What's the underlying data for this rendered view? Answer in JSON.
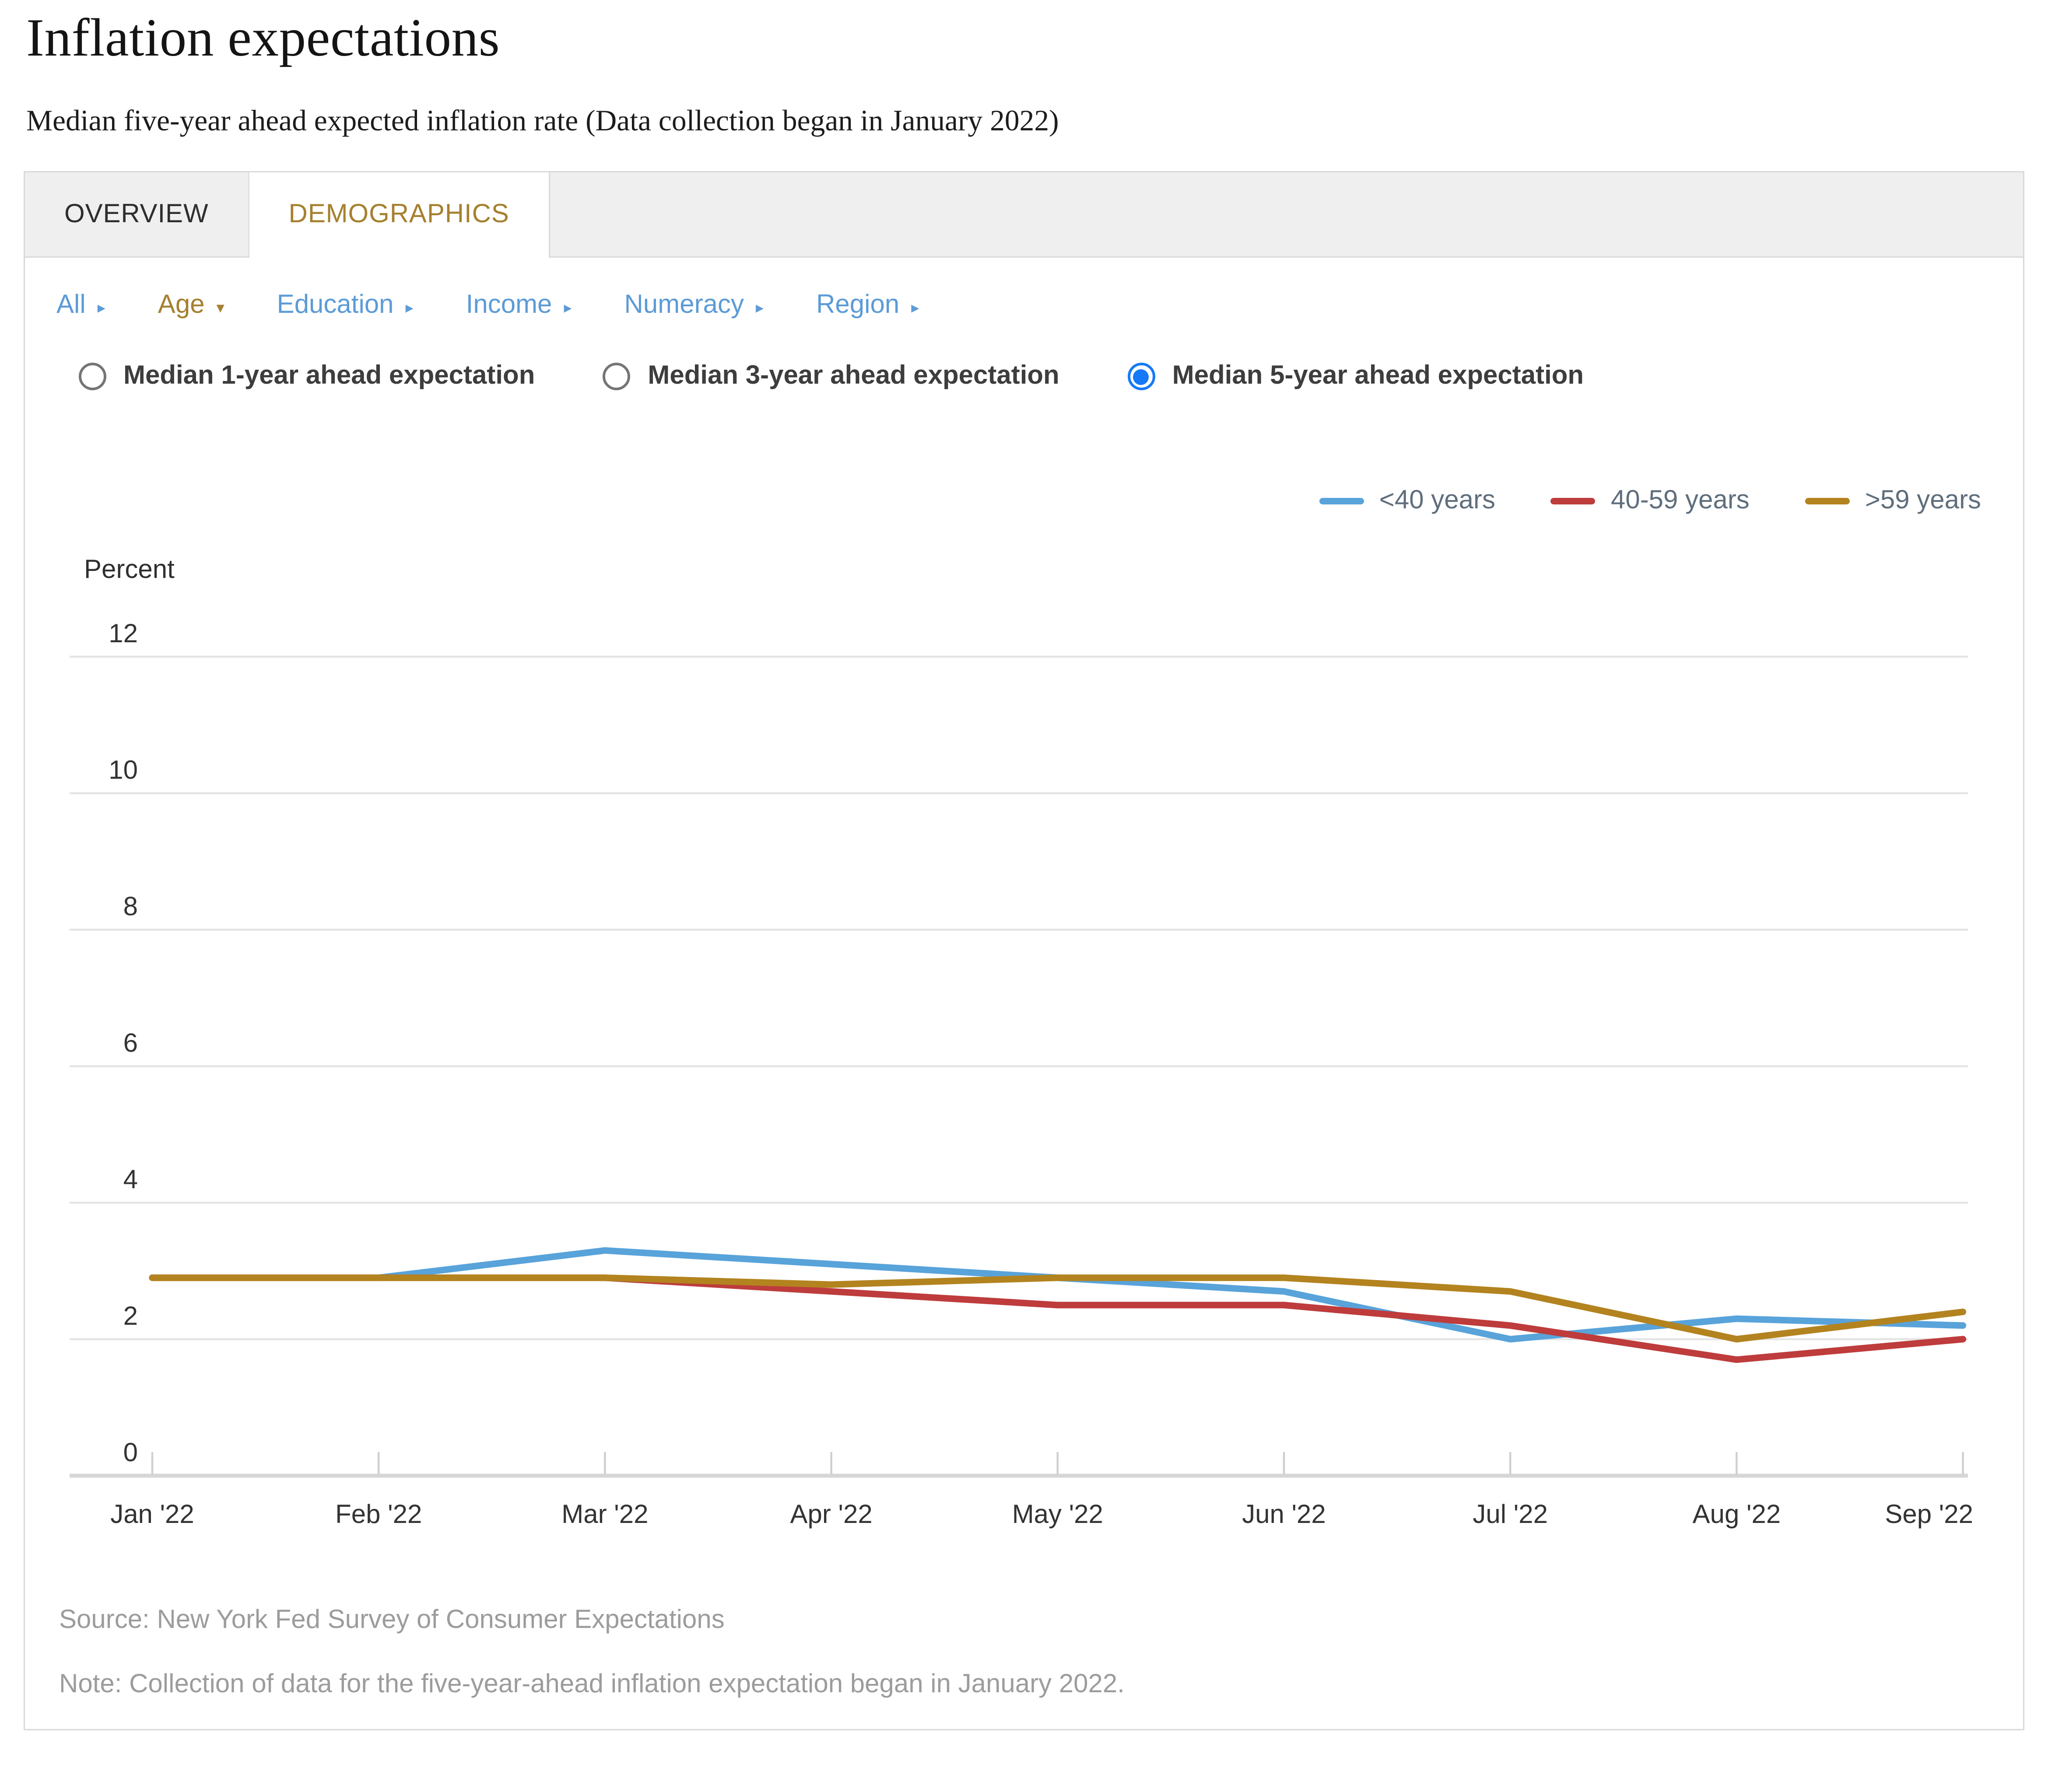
{
  "page": {
    "title": "Inflation expectations",
    "subtitle": "Median five-year ahead expected inflation rate (Data collection began in January 2022)"
  },
  "tabs": [
    {
      "label": "OVERVIEW",
      "active": false
    },
    {
      "label": "DEMOGRAPHICS",
      "active": true
    }
  ],
  "filters": [
    {
      "label": "All",
      "active": false,
      "arrow": "right"
    },
    {
      "label": "Age",
      "active": true,
      "arrow": "down"
    },
    {
      "label": "Education",
      "active": false,
      "arrow": "right"
    },
    {
      "label": "Income",
      "active": false,
      "arrow": "right"
    },
    {
      "label": "Numeracy",
      "active": false,
      "arrow": "right"
    },
    {
      "label": "Region",
      "active": false,
      "arrow": "right"
    }
  ],
  "radios": [
    {
      "label": "Median 1-year ahead expectation",
      "selected": false
    },
    {
      "label": "Median 3-year ahead expectation",
      "selected": false
    },
    {
      "label": "Median 5-year ahead expectation",
      "selected": true
    }
  ],
  "chart_data": {
    "type": "line",
    "title": "",
    "categories": [
      "Jan '22",
      "Feb '22",
      "Mar '22",
      "Apr '22",
      "May '22",
      "Jun '22",
      "Jul '22",
      "Aug '22",
      "Sep '22"
    ],
    "series": [
      {
        "name": "<40 years",
        "color": "#58A3DA",
        "values": [
          2.9,
          2.9,
          3.3,
          3.1,
          2.9,
          2.7,
          2.0,
          2.3,
          2.2
        ]
      },
      {
        "name": "40-59 years",
        "color": "#BE3C3C",
        "values": [
          2.9,
          2.9,
          2.9,
          2.7,
          2.5,
          2.5,
          2.2,
          1.7,
          2.0
        ]
      },
      {
        "name": ">59 years",
        "color": "#B3831F",
        "values": [
          2.9,
          2.9,
          2.9,
          2.8,
          2.9,
          2.9,
          2.7,
          2.0,
          2.4
        ]
      }
    ],
    "xlabel": "",
    "ylabel": "Percent",
    "ylim": [
      0,
      12
    ],
    "ytick_step": 2,
    "grid": true,
    "legend_position": "top-right"
  },
  "footer": {
    "source": "Source: New York Fed Survey of Consumer Expectations",
    "note": "Note: Collection of data for the five-year-ahead inflation expectation began in January 2022."
  },
  "colors": {
    "accent_gold": "#A5802F",
    "link_blue": "#5C9BD6",
    "radio_selected_blue": "#1679F7",
    "legend_text": "#5F6E7C",
    "axis_text": "#333333",
    "gridline": "#E4E4E4",
    "axis_line": "#D6D6D6",
    "tick": "#CFCFCF",
    "muted_text": "#9C9C9C"
  }
}
